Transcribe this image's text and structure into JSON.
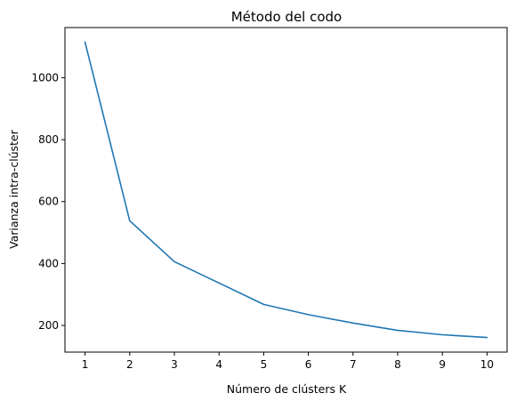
{
  "chart_data": {
    "type": "line",
    "title": "Método del codo",
    "xlabel": "Número de clústers K",
    "ylabel": "Varianza intra-clúster",
    "x": [
      1,
      2,
      3,
      4,
      5,
      6,
      7,
      8,
      9,
      10
    ],
    "series": [
      {
        "values": [
          1115,
          538,
          406,
          337,
          268,
          235,
          208,
          184,
          170,
          161
        ],
        "color": "#1f77b4"
      }
    ],
    "xlim": [
      0.55,
      10.45
    ],
    "ylim": [
      114,
      1162
    ],
    "xticks": [
      "1",
      "2",
      "3",
      "4",
      "5",
      "6",
      "7",
      "8",
      "9",
      "10"
    ],
    "yticks": [
      200,
      400,
      600,
      800,
      1000
    ],
    "yticklabels": [
      "200",
      "400",
      "600",
      "800",
      "1000"
    ],
    "grid": false,
    "legend": "none"
  }
}
